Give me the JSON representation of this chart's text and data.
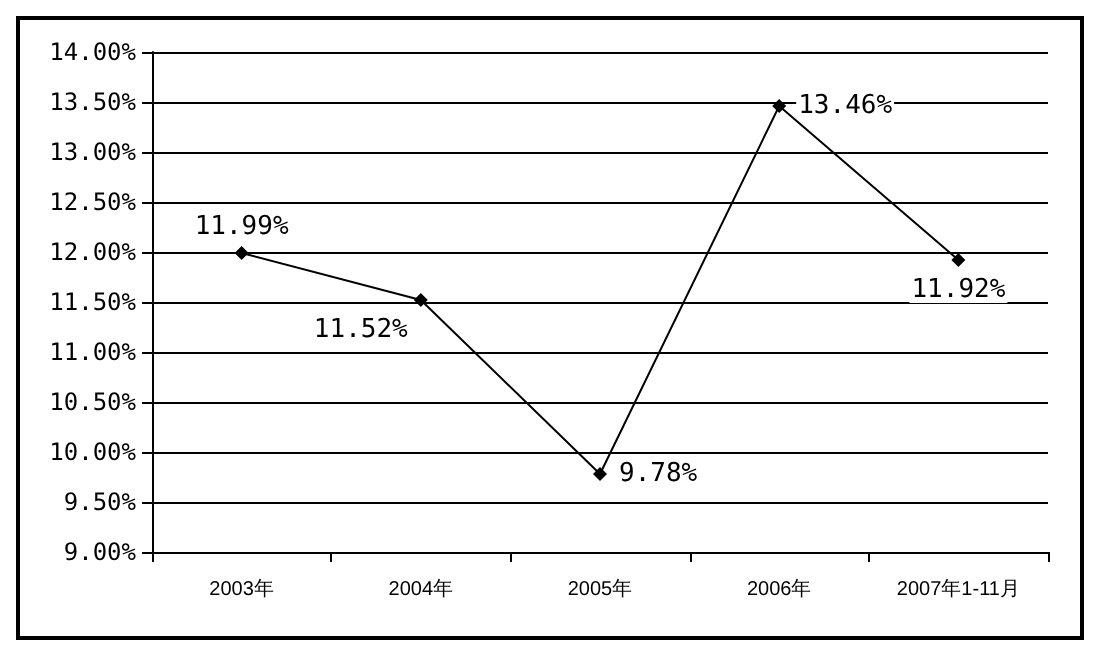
{
  "chart_data": {
    "type": "line",
    "categories": [
      "2003年",
      "2004年",
      "2005年",
      "2006年",
      "2007年1-11月"
    ],
    "series": [
      {
        "color": "#000000",
        "values": [
          11.99,
          11.52,
          9.78,
          13.46,
          11.92
        ],
        "value_labels": [
          "11.99%",
          "11.52%",
          "9.78%",
          "13.46%",
          "11.92%"
        ]
      }
    ],
    "ylim": [
      9,
      14
    ],
    "yticks": [
      {
        "value": 9,
        "label": "9.00%"
      },
      {
        "value": 9.5,
        "label": "9.50%"
      },
      {
        "value": 10,
        "label": "10.00%"
      },
      {
        "value": 10.5,
        "label": "10.50%"
      },
      {
        "value": 11,
        "label": "11.00%"
      },
      {
        "value": 11.5,
        "label": "11.50%"
      },
      {
        "value": 12,
        "label": "12.00%"
      },
      {
        "value": 12.5,
        "label": "12.50%"
      },
      {
        "value": 13,
        "label": "13.00%"
      },
      {
        "value": 13.5,
        "label": "13.50%"
      },
      {
        "value": 14,
        "label": "14.00%"
      }
    ],
    "grid": "y",
    "marker": "diamond",
    "line_style": "solid"
  }
}
